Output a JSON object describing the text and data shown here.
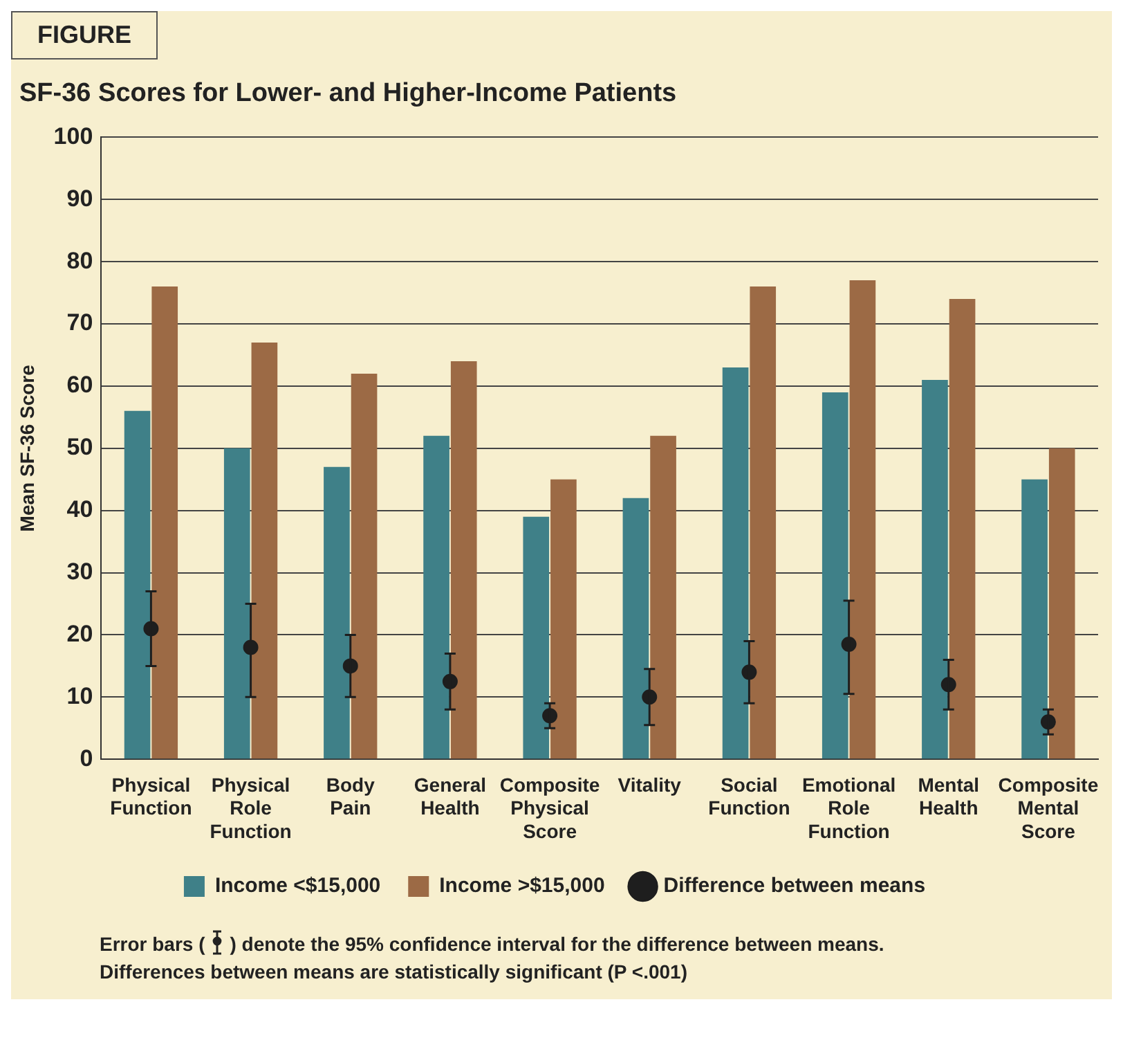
{
  "chart_data": {
    "type": "bar",
    "title": "SF-36 Scores for Lower- and Higher-Income Patients",
    "ylabel": "Mean SF-36 Score",
    "categories": [
      "Physical Function",
      "Physical Role Function",
      "Body Pain",
      "General Health",
      "Composite Physical Score",
      "Vitality",
      "Social Function",
      "Emotional Role Function",
      "Mental Health",
      "Composite Mental Score"
    ],
    "series": [
      {
        "name": "Income <$15,000",
        "color": "#3f8088",
        "values": [
          56,
          50,
          47,
          52,
          39,
          42,
          63,
          59,
          61,
          45
        ]
      },
      {
        "name": "Income >$15,000",
        "color": "#9c6a45",
        "values": [
          76,
          67,
          62,
          64,
          45,
          52,
          76,
          77,
          74,
          50
        ]
      },
      {
        "type": "scatter",
        "name": "Difference between means",
        "color": "#1e1e1e",
        "x": [
          "Physical Function",
          "Physical Role Function",
          "Body Pain",
          "General Health",
          "Composite Physical Score",
          "Vitality",
          "Social Function",
          "Emotional Role Function",
          "Mental Health",
          "Composite Mental Score"
        ],
        "values": [
          21,
          18,
          15,
          12.5,
          7,
          10,
          14,
          18.5,
          12,
          6
        ],
        "errors": [
          [
            15,
            27
          ],
          [
            10,
            25
          ],
          [
            10,
            20
          ],
          [
            8,
            17
          ],
          [
            5,
            9
          ],
          [
            5.5,
            14.5
          ],
          [
            9,
            19
          ],
          [
            10.5,
            25.5
          ],
          [
            8,
            16
          ],
          [
            4,
            8
          ]
        ]
      }
    ],
    "ylim": [
      0,
      100
    ],
    "yticks": [
      0,
      10,
      20,
      30,
      40,
      50,
      60,
      70,
      80,
      90,
      100
    ],
    "grid": "y",
    "legend": "bottom",
    "marker": "circle",
    "annotations": [
      "FIGURE",
      "Error bars (",
      ") denote the 95% confidence interval for the difference between means.",
      "Differences between means are statistically significant (P <.001)"
    ]
  }
}
